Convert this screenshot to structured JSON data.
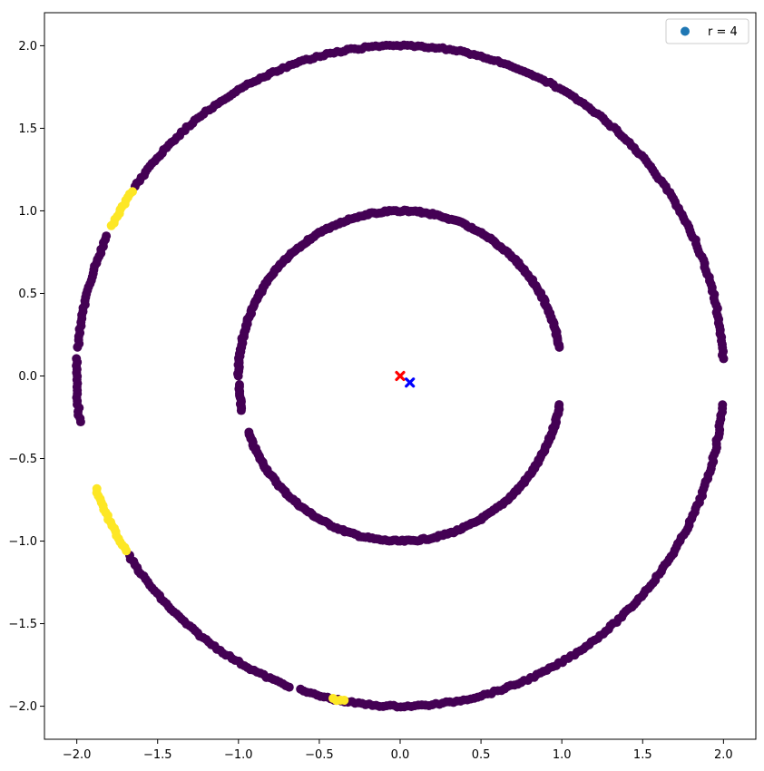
{
  "chart_data": {
    "type": "scatter",
    "title": "",
    "xlabel": "",
    "ylabel": "",
    "xlim": [
      -2.2,
      2.2
    ],
    "ylim": [
      -2.2,
      2.2
    ],
    "grid": false,
    "x_ticks": [
      "−2.0",
      "−1.5",
      "−1.0",
      "−0.5",
      "0.0",
      "0.5",
      "1.0",
      "1.5",
      "2.0"
    ],
    "x_tick_values": [
      -2.0,
      -1.5,
      -1.0,
      -0.5,
      0.0,
      0.5,
      1.0,
      1.5,
      2.0
    ],
    "y_ticks": [
      "2.0",
      "1.5",
      "1.0",
      "0.5",
      "0.0",
      "−0.5",
      "−1.0",
      "−1.5",
      "−2.0"
    ],
    "y_tick_values": [
      2.0,
      1.5,
      1.0,
      0.5,
      0.0,
      -0.5,
      -1.0,
      -1.5,
      -2.0
    ],
    "legend": {
      "label": "r = 4",
      "color": "#1f77b4",
      "position": "top-right"
    },
    "colors": {
      "cluster_0": "#440154",
      "cluster_1": "#fde725",
      "center_red": "#ff0000",
      "center_blue": "#0000ff"
    },
    "series": [
      {
        "ring": "inner",
        "radius": 1.0,
        "color": "#440154",
        "arcs_deg": [
          [
            10,
            180
          ],
          [
            183,
            192
          ],
          [
            200,
            350
          ]
        ]
      },
      {
        "ring": "outer",
        "radius": 2.0,
        "color": "#440154",
        "arcs_deg": [
          [
            3,
            145
          ],
          [
            155,
            175
          ],
          [
            177,
            188
          ],
          [
            213,
            250
          ],
          [
            252,
            355
          ]
        ]
      },
      {
        "ring": "outer",
        "radius": 2.0,
        "color": "#fde725",
        "arcs_deg": [
          [
            146,
            153
          ],
          [
            200,
            212
          ],
          [
            258,
            260
          ]
        ]
      }
    ],
    "markers": [
      {
        "x": 0.0,
        "y": 0.0,
        "color": "#ff0000",
        "shape": "x"
      },
      {
        "x": 0.06,
        "y": -0.04,
        "color": "#0000ff",
        "shape": "x"
      }
    ]
  }
}
